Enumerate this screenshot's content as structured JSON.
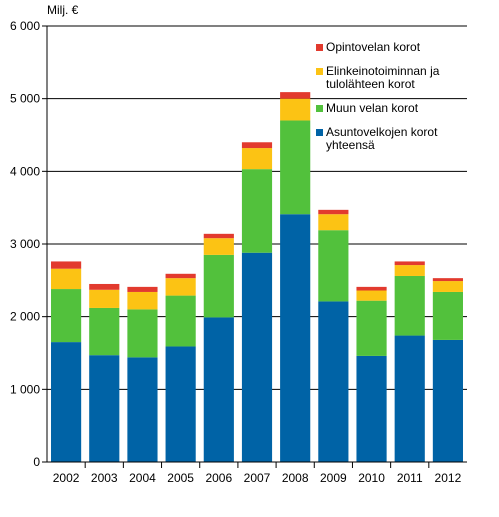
{
  "chart_data": {
    "type": "bar",
    "stacked": true,
    "title": "",
    "xlabel": "",
    "ylabel": "Milj. €",
    "ylim": [
      0,
      6000
    ],
    "yticks": [
      0,
      1000,
      2000,
      3000,
      4000,
      5000,
      6000
    ],
    "ytick_labels": [
      "0",
      "1 000",
      "2 000",
      "3 000",
      "4 000",
      "5 000",
      "6 000"
    ],
    "grid": true,
    "legend_position": "top-right",
    "categories": [
      "2002",
      "2003",
      "2004",
      "2005",
      "2006",
      "2007",
      "2008",
      "2009",
      "2010",
      "2011",
      "2012"
    ],
    "series": [
      {
        "name": "Asuntovelkojen korot yhteensä",
        "color": "#0063a6",
        "values": [
          1650,
          1470,
          1440,
          1590,
          1990,
          2880,
          3410,
          2210,
          1460,
          1740,
          1680
        ]
      },
      {
        "name": "Muun velan korot",
        "color": "#52c13c",
        "values": [
          730,
          650,
          660,
          700,
          860,
          1150,
          1290,
          980,
          760,
          820,
          660
        ]
      },
      {
        "name": "Elinkeinotoiminnan ja tulolähteen korot",
        "color": "#fcc314",
        "values": [
          280,
          250,
          240,
          240,
          230,
          290,
          300,
          220,
          140,
          150,
          150
        ]
      },
      {
        "name": "Opintovelan korot",
        "color": "#e23a2e",
        "values": [
          100,
          80,
          70,
          60,
          60,
          80,
          90,
          60,
          50,
          50,
          40
        ]
      }
    ],
    "legend_order": [
      3,
      2,
      1,
      0
    ],
    "legend_labels": [
      [
        "Opintovelan korot"
      ],
      [
        "Elinkeinotoiminnan ja",
        "tulolähteen korot"
      ],
      [
        "Muun velan korot"
      ],
      [
        "Asuntovelkojen korot",
        "yhteensä"
      ]
    ]
  }
}
